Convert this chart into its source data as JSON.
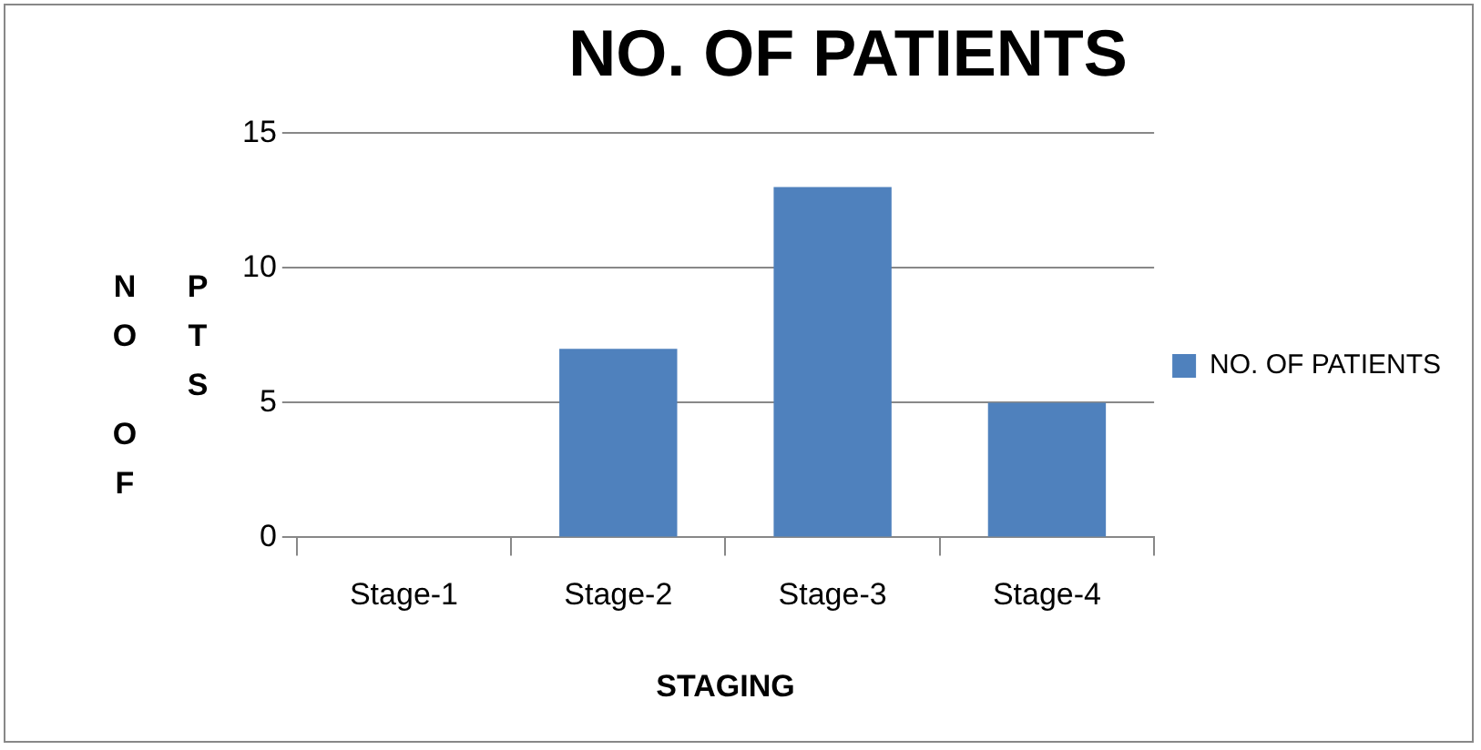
{
  "chart_data": {
    "type": "bar",
    "title": "NO. OF PATIENTS",
    "xlabel": "STAGING",
    "ylabel": "NO OF PTS",
    "categories": [
      "Stage-1",
      "Stage-2",
      "Stage-3",
      "Stage-4"
    ],
    "series": [
      {
        "name": "NO. OF PATIENTS",
        "color": "#4f81bd",
        "values": [
          0,
          7,
          13,
          5
        ]
      }
    ],
    "ylim": [
      0,
      15
    ],
    "yticks": [
      0,
      5,
      10,
      15
    ],
    "grid": "y",
    "legend": "right"
  }
}
